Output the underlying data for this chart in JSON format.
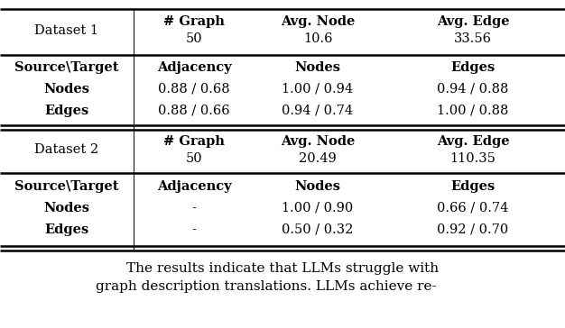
{
  "table": {
    "dataset1": {
      "label": "Dataset 1",
      "graph_count": "50",
      "avg_node": "10.6",
      "avg_edge": "33.56",
      "rows": [
        [
          "Nodes",
          "0.88 / 0.68",
          "1.00 / 0.94",
          "0.94 / 0.88"
        ],
        [
          "Edges",
          "0.88 / 0.66",
          "0.94 / 0.74",
          "1.00 / 0.88"
        ]
      ]
    },
    "dataset2": {
      "label": "Dataset 2",
      "graph_count": "50",
      "avg_node": "20.49",
      "avg_edge": "110.35",
      "rows": [
        [
          "Nodes",
          "-",
          "1.00 / 0.90",
          "0.66 / 0.74"
        ],
        [
          "Edges",
          "-",
          "0.50 / 0.32",
          "0.92 / 0.70"
        ]
      ]
    }
  },
  "caption_line1": "The results indicate that LLMs struggle with",
  "caption_line2": "graph description translations. LLMs achieve re-",
  "col_headers": [
    "# Graph",
    "Avg. Node",
    "Avg. Edge"
  ],
  "background_color": "#ffffff",
  "text_color": "#000000",
  "thick_lw": 1.8,
  "thin_lw": 0.7,
  "font_size": 10.5
}
